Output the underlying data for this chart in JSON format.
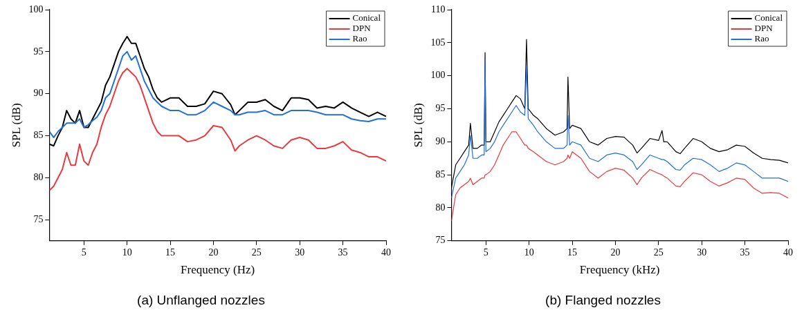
{
  "chart_data": [
    {
      "type": "line",
      "title": "(a) Unflanged nozzles",
      "xlabel": "Frequency (Hz)",
      "ylabel": "SPL (dB)",
      "xlim": [
        1,
        40
      ],
      "ylim": [
        72.5,
        100
      ],
      "xticks": [
        5,
        10,
        15,
        20,
        25,
        30,
        35,
        40
      ],
      "yticks": [
        75,
        80,
        85,
        90,
        95,
        100
      ],
      "grid": false,
      "legend": "top right",
      "marker": "none",
      "line_style": "solid",
      "x": [
        1,
        1.5,
        2,
        2.5,
        3,
        3.5,
        4,
        4.5,
        5,
        5.5,
        6,
        6.5,
        7,
        7.5,
        8,
        8.5,
        9,
        9.5,
        10,
        10.5,
        11,
        11.5,
        12,
        12.5,
        13,
        13.5,
        14,
        15,
        16,
        17,
        18,
        19,
        20,
        21,
        22,
        22.5,
        23,
        24,
        25,
        26,
        27,
        28,
        29,
        30,
        31,
        32,
        33,
        34,
        35,
        36,
        37,
        38,
        39,
        40
      ],
      "series": [
        {
          "name": "Conical",
          "color": "#000000",
          "values": [
            84,
            83.8,
            85,
            86,
            88,
            87,
            86.5,
            88,
            86,
            86,
            87,
            88,
            89,
            91,
            92,
            93.5,
            95,
            96,
            96.8,
            96,
            96,
            94.5,
            93,
            92,
            90.5,
            89.5,
            89,
            89.5,
            89.5,
            88.5,
            88.5,
            88.8,
            90.3,
            90,
            88.7,
            87.5,
            88,
            89,
            89,
            89.3,
            88.5,
            88,
            89.5,
            89.5,
            89.3,
            88.3,
            88.5,
            88.3,
            89,
            88.3,
            87.8,
            87.3,
            87.8,
            87.3
          ]
        },
        {
          "name": "DPN",
          "color": "#e8393c",
          "values": [
            78.5,
            79,
            80,
            81,
            83,
            81.5,
            81.5,
            84,
            82,
            81.5,
            83,
            84,
            86,
            87.5,
            88.5,
            90,
            91.5,
            92.5,
            93,
            92.5,
            92,
            91,
            89.5,
            88,
            86.5,
            85.5,
            85,
            85,
            85,
            84.3,
            84.5,
            85,
            86.2,
            86,
            84.5,
            83.2,
            83.8,
            84.5,
            85,
            84.5,
            83.8,
            83.5,
            84.5,
            84.8,
            84.5,
            83.5,
            83.5,
            83.8,
            84.3,
            83.3,
            83,
            82.5,
            82.5,
            82
          ]
        },
        {
          "name": "Rao",
          "color": "#1f6fdc",
          "values": [
            85.5,
            84.8,
            85.5,
            86,
            86.5,
            86.5,
            86.5,
            87,
            86,
            86.3,
            86.8,
            87.2,
            88,
            89.5,
            90,
            91.5,
            93,
            94.5,
            95,
            94,
            94.5,
            93,
            91.5,
            90.5,
            89.5,
            89,
            88.5,
            88,
            88,
            87.5,
            87.5,
            88,
            89,
            88.5,
            88,
            87.5,
            87.5,
            87.8,
            87.8,
            88,
            87.5,
            87.5,
            88,
            88,
            88,
            87.8,
            87.5,
            87.5,
            87.5,
            87,
            86.8,
            86.7,
            87,
            87
          ]
        }
      ]
    },
    {
      "type": "line",
      "title": "(b) Flanged nozzles",
      "xlabel": "Frequency (kHz)",
      "ylabel": "SPL (dB)",
      "xlim": [
        1,
        40
      ],
      "ylim": [
        75,
        110
      ],
      "xticks": [
        5,
        10,
        15,
        20,
        25,
        30,
        35,
        40
      ],
      "yticks": [
        75,
        80,
        85,
        90,
        95,
        100,
        105,
        110
      ],
      "grid": false,
      "legend": "top right",
      "marker": "none",
      "line_style": "solid",
      "x": [
        1,
        1.5,
        2,
        2.5,
        3,
        3.2,
        3.5,
        4,
        4.5,
        4.8,
        4.9,
        5,
        5.5,
        6,
        6.5,
        7,
        7.5,
        8,
        8.5,
        9,
        9.5,
        9.7,
        9.9,
        10.5,
        11,
        12,
        13,
        14,
        14.4,
        14.5,
        14.7,
        15,
        16,
        17,
        18,
        19,
        20,
        21,
        22,
        22.5,
        23,
        24,
        25,
        25.4,
        25.6,
        26,
        27,
        27.5,
        28,
        29,
        30,
        31,
        32,
        33,
        34,
        35,
        36,
        37,
        38,
        39,
        40
      ],
      "series": [
        {
          "name": "Conical",
          "color": "#000000",
          "values": [
            83,
            86.5,
            87.5,
            88.5,
            89.5,
            92.8,
            89,
            89,
            89.5,
            89.5,
            103.5,
            90,
            90,
            91.5,
            93,
            94,
            95,
            96,
            97,
            96.5,
            95,
            105.5,
            95,
            94,
            93.5,
            92,
            91,
            91.5,
            92,
            99.8,
            92,
            92.5,
            92,
            90,
            89.5,
            90.5,
            90.8,
            90.7,
            89.5,
            88.3,
            89,
            90.5,
            90.2,
            91.7,
            90,
            90,
            88.5,
            88.2,
            89,
            90.5,
            90,
            89,
            88.5,
            88.8,
            89.5,
            89.3,
            88.3,
            87.5,
            87.3,
            87.2,
            86.8
          ]
        },
        {
          "name": "DPN",
          "color": "#e8393c",
          "values": [
            78,
            82,
            83,
            83.5,
            84,
            84.5,
            83.5,
            84,
            84.5,
            84.5,
            85,
            85,
            85.5,
            86.5,
            88,
            89.5,
            90.5,
            91.5,
            91.5,
            90.5,
            89.5,
            89.5,
            89,
            88.5,
            88,
            87,
            86.5,
            87,
            87.5,
            88,
            87.5,
            88.5,
            87.5,
            85.5,
            84.5,
            85.5,
            86,
            85.7,
            84.5,
            83.5,
            84.5,
            85.8,
            85.2,
            85,
            84.8,
            84.5,
            83.3,
            83.2,
            84,
            85.3,
            85,
            84,
            83.3,
            83.8,
            84.5,
            84.3,
            83,
            82.2,
            82.3,
            82.2,
            81.5
          ]
        },
        {
          "name": "Rao",
          "color": "#1f6fdc",
          "values": [
            81.5,
            84.5,
            85.5,
            86.5,
            88,
            91,
            87.5,
            87.5,
            88,
            88,
            102.5,
            88.5,
            89,
            90,
            91.5,
            92.5,
            93.5,
            94.5,
            95.5,
            94.5,
            94,
            101.5,
            93.5,
            92.5,
            91.5,
            90,
            89,
            89,
            89.5,
            94,
            89.5,
            90,
            89.5,
            87.5,
            87,
            88,
            88.3,
            88,
            87,
            85.8,
            86.5,
            88,
            87.5,
            87.3,
            87.3,
            87,
            85.8,
            85.7,
            86.5,
            87.5,
            87.3,
            86.5,
            85.5,
            86,
            86.8,
            86.5,
            85.5,
            84.5,
            84.5,
            84.5,
            84
          ]
        }
      ]
    }
  ]
}
